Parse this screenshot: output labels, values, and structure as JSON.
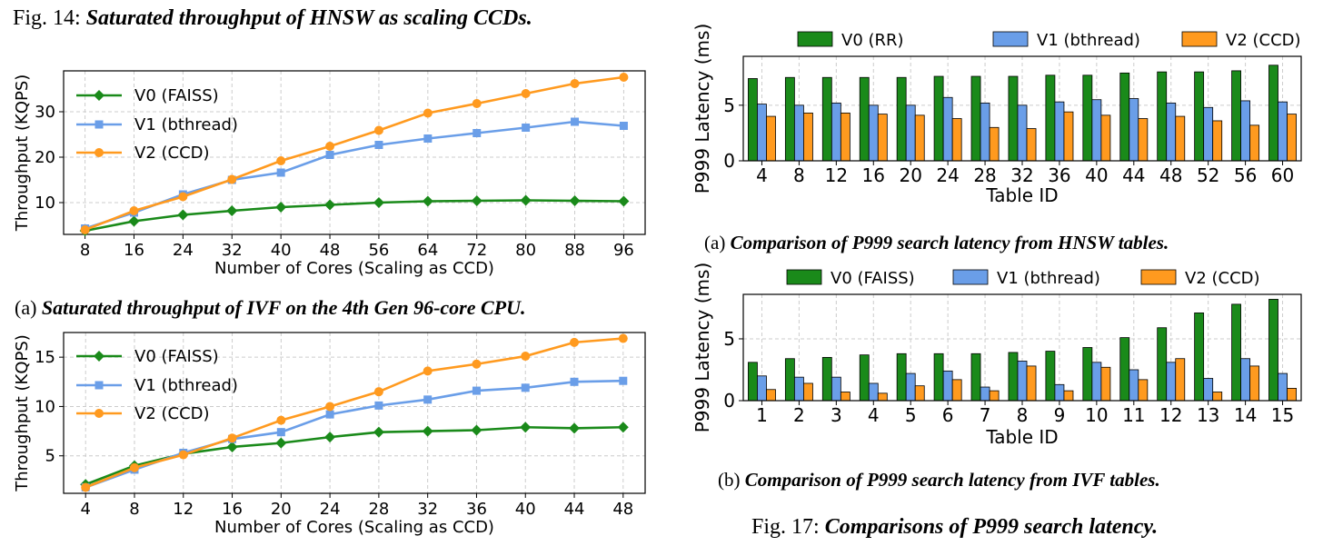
{
  "captions": {
    "fig14_prefix": "Fig. 14: ",
    "fig14_title": "Saturated throughput of HNSW as scaling CCDs.",
    "left_b_prefix": "(a) ",
    "left_b_title": "Saturated throughput of IVF on the 4th Gen 96-core CPU.",
    "right_a_prefix": "(a) ",
    "right_a_title": "Comparison of P999 search latency from HNSW tables.",
    "right_b_prefix": "(b) ",
    "right_b_title": "Comparison of P999 search latency from IVF tables.",
    "fig17_prefix": "Fig. 17: ",
    "fig17_title": "Comparisons of P999 search latency."
  },
  "colors": {
    "v0": "#1a8a1a",
    "v1": "#6a9ee8",
    "v2": "#ff9a1f",
    "grid": "#cccccc"
  },
  "chart_data": [
    {
      "type": "line",
      "title": "",
      "xlabel": "Number of Cores (Scaling as CCD)",
      "ylabel": "Throughput (KQPS)",
      "x": [
        8,
        16,
        24,
        32,
        40,
        48,
        56,
        64,
        72,
        80,
        88,
        96
      ],
      "xlim": [
        4.5,
        99.5
      ],
      "ylim": [
        3,
        39
      ],
      "yticks": [
        10,
        20,
        30
      ],
      "grid": true,
      "legend": "top-left",
      "series": [
        {
          "name": "V0 (FAISS)",
          "marker": "diamond",
          "values": [
            3.8,
            5.9,
            7.3,
            8.2,
            9.0,
            9.5,
            10.0,
            10.3,
            10.4,
            10.5,
            10.4,
            10.3
          ]
        },
        {
          "name": "V1 (bthread)",
          "marker": "square",
          "values": [
            4.3,
            7.8,
            11.8,
            15.0,
            16.6,
            20.5,
            22.7,
            24.1,
            25.3,
            26.5,
            27.8,
            26.9
          ]
        },
        {
          "name": "V2 (CCD)",
          "marker": "circle",
          "values": [
            4.0,
            8.2,
            11.3,
            15.1,
            19.2,
            22.4,
            25.9,
            29.7,
            31.8,
            34.0,
            36.2,
            37.6
          ]
        }
      ]
    },
    {
      "type": "line",
      "title": "",
      "xlabel": "Number of Cores (Scaling as CCD)",
      "ylabel": "Throughput (KQPS)",
      "x": [
        4,
        8,
        12,
        16,
        20,
        24,
        28,
        32,
        36,
        40,
        44,
        48
      ],
      "xlim": [
        2.2,
        49.8
      ],
      "ylim": [
        1.2,
        17.5
      ],
      "yticks": [
        5,
        10,
        15
      ],
      "grid": true,
      "legend": "top-left",
      "series": [
        {
          "name": "V0 (FAISS)",
          "marker": "diamond",
          "values": [
            2.1,
            4.0,
            5.2,
            5.9,
            6.3,
            6.9,
            7.4,
            7.5,
            7.6,
            7.9,
            7.8,
            7.9
          ]
        },
        {
          "name": "V1 (bthread)",
          "marker": "square",
          "values": [
            1.8,
            3.6,
            5.3,
            6.7,
            7.4,
            9.2,
            10.1,
            10.7,
            11.6,
            11.9,
            12.5,
            12.6
          ]
        },
        {
          "name": "V2 (CCD)",
          "marker": "circle",
          "values": [
            1.8,
            3.8,
            5.1,
            6.8,
            8.6,
            10.0,
            11.5,
            13.6,
            14.3,
            15.1,
            16.5,
            16.9
          ]
        }
      ]
    },
    {
      "type": "bar",
      "title": "",
      "xlabel": "Table ID",
      "ylabel": "P999 Latency (ms)",
      "categories": [
        "4",
        "8",
        "12",
        "16",
        "20",
        "24",
        "28",
        "32",
        "36",
        "40",
        "44",
        "48",
        "52",
        "56",
        "60"
      ],
      "ylim": [
        0,
        9.4
      ],
      "yticks": [
        0,
        5
      ],
      "grid": true,
      "legend": "top (above plot)",
      "series": [
        {
          "name": "V0 (RR)",
          "values": [
            7.4,
            7.5,
            7.5,
            7.5,
            7.5,
            7.6,
            7.6,
            7.6,
            7.7,
            7.7,
            7.9,
            8.0,
            8.0,
            8.1,
            8.6
          ]
        },
        {
          "name": "V1 (bthread)",
          "values": [
            5.1,
            5.0,
            5.2,
            5.0,
            5.0,
            5.7,
            5.2,
            5.0,
            5.3,
            5.5,
            5.6,
            5.2,
            4.8,
            5.4,
            5.3
          ]
        },
        {
          "name": "V2 (CCD)",
          "values": [
            4.0,
            4.3,
            4.3,
            4.2,
            4.1,
            3.8,
            3.0,
            2.9,
            4.4,
            4.1,
            3.8,
            4.0,
            3.6,
            3.2,
            4.2
          ]
        }
      ]
    },
    {
      "type": "bar",
      "title": "",
      "xlabel": "Table ID",
      "ylabel": "P999 Latency (ms)",
      "categories": [
        "1",
        "2",
        "3",
        "4",
        "5",
        "6",
        "7",
        "8",
        "9",
        "10",
        "11",
        "12",
        "13",
        "14",
        "15"
      ],
      "ylim": [
        0,
        8.6
      ],
      "yticks": [
        0,
        5
      ],
      "grid": true,
      "legend": "top (above plot)",
      "series": [
        {
          "name": "V0 (FAISS)",
          "values": [
            3.1,
            3.4,
            3.5,
            3.7,
            3.8,
            3.8,
            3.8,
            3.9,
            4.0,
            4.3,
            5.1,
            5.9,
            7.1,
            7.8,
            8.2
          ]
        },
        {
          "name": "V1 (bthread)",
          "values": [
            2.0,
            1.9,
            1.9,
            1.4,
            2.2,
            2.4,
            1.1,
            3.2,
            1.3,
            3.1,
            2.5,
            3.1,
            1.8,
            3.4,
            2.2
          ]
        },
        {
          "name": "V2 (CCD)",
          "values": [
            0.9,
            1.4,
            0.7,
            0.6,
            1.2,
            1.7,
            0.8,
            2.8,
            0.8,
            2.7,
            1.7,
            3.4,
            0.7,
            2.8,
            1.0
          ]
        }
      ]
    }
  ]
}
